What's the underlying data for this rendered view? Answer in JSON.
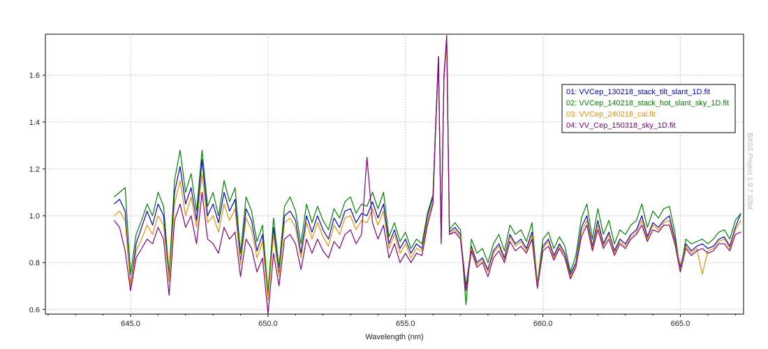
{
  "chart_data": {
    "type": "line",
    "title": "",
    "xlabel": "Wavelength (nm)",
    "ylabel": "",
    "xlim": [
      641.9,
      667.3
    ],
    "ylim": [
      0.58,
      1.775
    ],
    "grid": true,
    "legend_position": "top-right",
    "watermark": "BASS Project 1.9.7 32bit",
    "x_ticks": [
      {
        "value": 645,
        "label": "645.0"
      },
      {
        "value": 650,
        "label": "650.0"
      },
      {
        "value": 655,
        "label": "655.0"
      },
      {
        "value": 660,
        "label": "660.0"
      },
      {
        "value": 665,
        "label": "665.0"
      }
    ],
    "y_ticks": [
      {
        "value": 0.6,
        "label": "0.6"
      },
      {
        "value": 0.8,
        "label": "0.8"
      },
      {
        "value": 1.0,
        "label": "1.0"
      },
      {
        "value": 1.2,
        "label": "1.2"
      },
      {
        "value": 1.4,
        "label": "1.4"
      },
      {
        "value": 1.6,
        "label": "1.6"
      }
    ],
    "x": [
      644.4,
      644.6,
      644.8,
      645.0,
      645.2,
      645.4,
      645.6,
      645.8,
      646.0,
      646.2,
      646.4,
      646.6,
      646.8,
      647.0,
      647.2,
      647.4,
      647.6,
      647.8,
      648.0,
      648.2,
      648.4,
      648.6,
      648.8,
      649.0,
      649.2,
      649.4,
      649.6,
      649.8,
      650.0,
      650.2,
      650.4,
      650.6,
      650.8,
      651.0,
      651.2,
      651.4,
      651.6,
      651.8,
      652.0,
      652.2,
      652.4,
      652.6,
      652.8,
      653.0,
      653.2,
      653.4,
      653.6,
      653.8,
      654.0,
      654.2,
      654.4,
      654.6,
      654.8,
      655.0,
      655.2,
      655.4,
      655.6,
      655.8,
      656.0,
      656.1,
      656.2,
      656.3,
      656.4,
      656.5,
      656.6,
      656.8,
      657.0,
      657.2,
      657.4,
      657.6,
      657.8,
      658.0,
      658.2,
      658.4,
      658.6,
      658.8,
      659.0,
      659.2,
      659.4,
      659.6,
      659.8,
      660.0,
      660.2,
      660.4,
      660.6,
      660.8,
      661.0,
      661.2,
      661.4,
      661.6,
      661.8,
      662.0,
      662.2,
      662.4,
      662.6,
      662.8,
      663.0,
      663.2,
      663.4,
      663.6,
      663.8,
      664.0,
      664.2,
      664.4,
      664.6,
      664.8,
      665.0,
      665.2,
      665.4,
      665.6,
      665.8,
      666.0,
      666.2,
      666.4,
      666.6,
      666.8,
      667.0,
      667.2
    ],
    "series": [
      {
        "name": "01: VVCep_130218_stack_tilt_slant_1D.fit",
        "color": "#0000cc",
        "values": [
          1.05,
          1.07,
          1.02,
          0.7,
          0.88,
          0.95,
          1.02,
          0.96,
          1.05,
          1.0,
          0.72,
          1.1,
          1.21,
          1.05,
          1.12,
          0.98,
          1.24,
          1.0,
          1.05,
          0.97,
          1.1,
          1.02,
          1.07,
          0.8,
          1.03,
          0.98,
          0.85,
          0.92,
          0.64,
          0.95,
          0.75,
          1.0,
          1.02,
          0.98,
          0.84,
          1.0,
          0.93,
          1.0,
          0.94,
          0.9,
          0.99,
          0.95,
          1.02,
          1.03,
          0.97,
          1.01,
          1.0,
          1.06,
          0.99,
          1.05,
          0.88,
          0.94,
          0.86,
          0.9,
          0.84,
          0.88,
          0.86,
          1.0,
          1.08,
          1.4,
          1.68,
          0.9,
          1.6,
          1.76,
          0.93,
          0.95,
          0.92,
          0.7,
          0.87,
          0.8,
          0.82,
          0.77,
          0.85,
          0.88,
          0.82,
          0.92,
          0.88,
          0.9,
          0.86,
          0.93,
          0.7,
          0.87,
          0.9,
          0.83,
          0.88,
          0.84,
          0.75,
          0.8,
          0.95,
          1.0,
          0.87,
          0.98,
          0.88,
          0.93,
          0.85,
          0.9,
          0.88,
          0.92,
          0.94,
          1.0,
          0.91,
          0.97,
          0.95,
          0.98,
          1.0,
          0.9,
          0.78,
          0.88,
          0.85,
          0.87,
          0.88,
          0.86,
          0.87,
          0.9,
          0.91,
          0.87,
          0.95,
          1.01
        ]
      },
      {
        "name": "02: VVCep_140218_stack_hot_slant_sky_1D.fit",
        "color": "#008000",
        "values": [
          1.08,
          1.1,
          1.12,
          0.75,
          0.92,
          0.98,
          1.05,
          1.0,
          1.1,
          1.04,
          0.75,
          1.15,
          1.28,
          1.1,
          1.18,
          1.02,
          1.28,
          1.04,
          1.1,
          1.0,
          1.15,
          1.06,
          1.12,
          0.84,
          1.08,
          1.02,
          0.89,
          0.96,
          0.67,
          0.99,
          0.78,
          1.04,
          1.08,
          1.02,
          0.88,
          1.05,
          0.97,
          1.04,
          0.98,
          0.94,
          1.03,
          0.99,
          1.06,
          1.08,
          1.01,
          1.05,
          1.04,
          1.1,
          1.03,
          1.1,
          0.91,
          0.97,
          0.89,
          0.93,
          0.86,
          0.9,
          0.88,
          1.01,
          1.09,
          1.4,
          1.67,
          0.9,
          1.59,
          1.75,
          0.94,
          0.97,
          0.94,
          0.62,
          0.9,
          0.84,
          0.86,
          0.8,
          0.88,
          0.92,
          0.85,
          0.96,
          0.92,
          0.94,
          0.89,
          0.97,
          0.71,
          0.9,
          0.93,
          0.86,
          0.91,
          0.87,
          0.76,
          0.83,
          0.99,
          1.05,
          0.9,
          1.03,
          0.92,
          0.98,
          0.88,
          0.94,
          0.92,
          0.96,
          0.98,
          1.05,
          0.95,
          1.02,
          0.99,
          1.03,
          1.04,
          0.93,
          0.76,
          0.9,
          0.88,
          0.89,
          0.9,
          0.88,
          0.9,
          0.93,
          0.94,
          0.9,
          0.98,
          1.01
        ]
      },
      {
        "name": "03: VVCep_240218_cal.fit",
        "color": "#e69000",
        "values": [
          1.0,
          1.02,
          0.98,
          0.7,
          0.85,
          0.9,
          0.96,
          0.92,
          1.0,
          0.96,
          0.72,
          1.05,
          1.15,
          1.0,
          1.08,
          0.95,
          1.18,
          0.97,
          1.0,
          0.93,
          1.05,
          0.98,
          1.03,
          0.79,
          0.99,
          0.94,
          0.82,
          0.89,
          0.64,
          0.92,
          0.74,
          0.97,
          0.99,
          0.95,
          0.82,
          0.97,
          0.9,
          0.97,
          0.91,
          0.87,
          0.96,
          0.92,
          0.99,
          1.0,
          0.94,
          0.98,
          0.97,
          1.03,
          0.96,
          1.02,
          0.86,
          0.92,
          0.84,
          0.88,
          0.82,
          0.86,
          0.85,
          0.98,
          1.06,
          1.38,
          1.66,
          0.89,
          1.58,
          1.74,
          0.92,
          0.94,
          0.91,
          0.69,
          0.86,
          0.79,
          0.81,
          0.76,
          0.84,
          0.87,
          0.81,
          0.91,
          0.87,
          0.89,
          0.85,
          0.92,
          0.7,
          0.86,
          0.89,
          0.82,
          0.87,
          0.83,
          0.74,
          0.79,
          0.93,
          0.98,
          0.86,
          0.96,
          0.87,
          0.92,
          0.84,
          0.89,
          0.87,
          0.91,
          0.93,
          0.98,
          0.9,
          0.96,
          0.94,
          0.97,
          0.98,
          0.89,
          0.77,
          0.87,
          0.84,
          0.86,
          0.75,
          0.85,
          0.86,
          0.89,
          0.9,
          0.86,
          0.94,
          0.98
        ]
      },
      {
        "name": "04: VV_Cep_150318_sky_1D.fit",
        "color": "#800080",
        "values": [
          0.98,
          0.95,
          0.85,
          0.68,
          0.82,
          0.86,
          0.9,
          0.88,
          0.95,
          0.9,
          0.66,
          0.98,
          1.05,
          0.95,
          1.0,
          0.88,
          1.1,
          0.9,
          0.88,
          0.84,
          0.95,
          0.9,
          0.93,
          0.74,
          0.9,
          0.86,
          0.76,
          0.82,
          0.58,
          0.84,
          0.7,
          0.9,
          0.92,
          0.88,
          0.77,
          0.9,
          0.84,
          0.9,
          0.85,
          0.82,
          0.89,
          0.86,
          0.92,
          0.94,
          0.88,
          0.92,
          1.25,
          0.97,
          0.9,
          0.96,
          0.82,
          0.88,
          0.8,
          0.84,
          0.8,
          0.84,
          0.83,
          0.96,
          1.05,
          1.38,
          1.68,
          0.88,
          1.6,
          1.77,
          0.92,
          0.93,
          0.9,
          0.68,
          0.85,
          0.78,
          0.8,
          0.74,
          0.82,
          0.85,
          0.8,
          0.89,
          0.85,
          0.87,
          0.84,
          0.9,
          0.69,
          0.85,
          0.87,
          0.81,
          0.86,
          0.82,
          0.73,
          0.78,
          0.91,
          0.96,
          0.85,
          0.94,
          0.86,
          0.9,
          0.83,
          0.88,
          0.86,
          0.9,
          0.92,
          0.96,
          0.89,
          0.94,
          0.93,
          0.96,
          0.96,
          0.88,
          0.76,
          0.86,
          0.83,
          0.85,
          0.86,
          0.84,
          0.85,
          0.88,
          0.88,
          0.85,
          0.92,
          0.93
        ]
      }
    ]
  }
}
